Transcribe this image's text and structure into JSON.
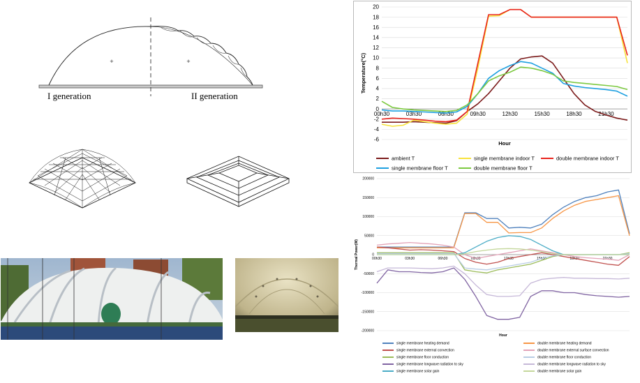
{
  "diagram": {
    "label_left": "I generation",
    "label_right": "II generation"
  },
  "chart_data": [
    {
      "type": "line",
      "xlabel": "Hour",
      "ylabel": "Temperature(°C)",
      "ylim": [
        -6,
        20
      ],
      "yticks": [
        -6,
        -4,
        -2,
        0,
        2,
        4,
        6,
        8,
        10,
        12,
        14,
        16,
        18,
        20
      ],
      "xtick_labels": [
        "00h30",
        "03h30",
        "06h30",
        "09h30",
        "12h30",
        "15h30",
        "18h30",
        "21h30"
      ],
      "xtick_hours": [
        0.5,
        3.5,
        6.5,
        9.5,
        12.5,
        15.5,
        18.5,
        21.5
      ],
      "grid": "horizontal",
      "legend_position": "bottom",
      "x": [
        0.5,
        1.5,
        2.5,
        3.5,
        4.5,
        5.5,
        6.5,
        7.5,
        8.5,
        9.5,
        10.5,
        11.5,
        12.5,
        13.5,
        14.5,
        15.5,
        16.5,
        17.5,
        18.5,
        19.5,
        20.5,
        21.5,
        22.5,
        23.5
      ],
      "series": [
        {
          "name": "ambient T",
          "color": "#7b1a1a",
          "values": [
            -2.6,
            -2.6,
            -2.6,
            -2.5,
            -2.6,
            -2.7,
            -2.8,
            -2.3,
            -0.5,
            1.0,
            3.0,
            5.5,
            8.0,
            9.8,
            10.2,
            10.4,
            9.0,
            6.0,
            3.0,
            0.8,
            -0.5,
            -1.2,
            -1.8,
            -2.2
          ]
        },
        {
          "name": "single membrane indoor T",
          "color": "#f7e23a",
          "values": [
            -3.0,
            -3.4,
            -3.2,
            -2.2,
            -2.5,
            -2.8,
            -3.0,
            -2.8,
            -1.0,
            8.0,
            18.2,
            18.3,
            19.5,
            19.5,
            18.0,
            18.0,
            18.0,
            18.0,
            18.0,
            18.0,
            18.0,
            18.0,
            18.0,
            9.0
          ]
        },
        {
          "name": "double membrane indoor T",
          "color": "#e8231c",
          "values": [
            -2.0,
            -1.8,
            -1.9,
            -2.0,
            -2.2,
            -2.4,
            -2.5,
            -2.2,
            -0.5,
            9.0,
            18.5,
            18.5,
            19.5,
            19.5,
            18.0,
            18.0,
            18.0,
            18.0,
            18.0,
            18.0,
            18.0,
            18.0,
            18.0,
            10.5
          ]
        },
        {
          "name": "single membrane floor T",
          "color": "#1ea0e0",
          "values": [
            -0.2,
            -0.4,
            -0.4,
            -0.5,
            -0.6,
            -0.7,
            -0.8,
            -0.6,
            0.5,
            3.0,
            6.0,
            7.5,
            8.5,
            9.3,
            9.0,
            8.0,
            7.0,
            5.0,
            4.5,
            4.2,
            4.0,
            3.8,
            3.5,
            2.5
          ]
        },
        {
          "name": "double membrane floor T",
          "color": "#7cc940",
          "values": [
            1.5,
            0.3,
            0.0,
            -0.2,
            -0.3,
            -0.4,
            -0.5,
            -0.3,
            0.8,
            3.0,
            5.5,
            6.5,
            7.2,
            8.2,
            8.0,
            7.5,
            6.8,
            5.5,
            5.2,
            5.0,
            4.8,
            4.6,
            4.4,
            3.8
          ]
        }
      ]
    },
    {
      "type": "line",
      "xlabel": "Hour",
      "ylabel": "Thermal Power(W)",
      "ylim": [
        -200000,
        200000
      ],
      "yticks": [
        -200000,
        -150000,
        -100000,
        -50000,
        0,
        50000,
        100000,
        150000,
        200000
      ],
      "xtick_labels": [
        "00h30",
        "03h30",
        "06h30",
        "09h30",
        "12h30",
        "15h30",
        "18h30",
        "21h30"
      ],
      "xtick_hours": [
        0.5,
        3.5,
        6.5,
        9.5,
        12.5,
        15.5,
        18.5,
        21.5
      ],
      "grid": "horizontal",
      "legend_position": "bottom",
      "x": [
        0.5,
        1.5,
        2.5,
        3.5,
        4.5,
        5.5,
        6.5,
        7.5,
        8.5,
        9.5,
        10.5,
        11.5,
        12.5,
        13.5,
        14.5,
        15.5,
        16.5,
        17.5,
        18.5,
        19.5,
        20.5,
        21.5,
        22.5,
        23.5
      ],
      "series": [
        {
          "name": "single membrane heating demand",
          "color": "#4f81bd",
          "values": [
            20000,
            20000,
            20000,
            20000,
            20000,
            20000,
            20000,
            20000,
            110000,
            110000,
            95000,
            95000,
            70000,
            72000,
            70000,
            80000,
            105000,
            125000,
            140000,
            150000,
            155000,
            165000,
            170000,
            55000
          ]
        },
        {
          "name": "double membrane heating demand",
          "color": "#f79646",
          "values": [
            18000,
            18000,
            18000,
            18000,
            18000,
            18000,
            18000,
            18000,
            108000,
            108000,
            85000,
            85000,
            57000,
            58000,
            58000,
            70000,
            95000,
            115000,
            130000,
            140000,
            145000,
            150000,
            155000,
            50000
          ]
        },
        {
          "name": "single membrane external convection",
          "color": "#c0504d",
          "values": [
            20000,
            18000,
            15000,
            12000,
            13000,
            12000,
            10000,
            8000,
            -10000,
            -20000,
            -25000,
            -20000,
            -10000,
            -5000,
            0,
            5000,
            0,
            -5000,
            -10000,
            -15000,
            -20000,
            -25000,
            -28000,
            -5000
          ]
        },
        {
          "name": "double membrane external surface convection",
          "color": "#e3a3b8",
          "values": [
            25000,
            28000,
            30000,
            32000,
            30000,
            28000,
            25000,
            20000,
            0,
            -10000,
            -5000,
            0,
            5000,
            10000,
            15000,
            10000,
            5000,
            0,
            -5000,
            -8000,
            -10000,
            -12000,
            -15000,
            0
          ]
        },
        {
          "name": "single membrane floor conduction",
          "color": "#9bbb59",
          "values": [
            5000,
            5000,
            5000,
            5000,
            5000,
            5000,
            5000,
            5000,
            -40000,
            -45000,
            -48000,
            -40000,
            -35000,
            -30000,
            -25000,
            -15000,
            -5000,
            0,
            0,
            0,
            0,
            0,
            0,
            5000
          ]
        },
        {
          "name": "double membrane floor conduction",
          "color": "#b8cce4",
          "values": [
            3000,
            3000,
            3000,
            3000,
            3000,
            3000,
            3000,
            3000,
            -35000,
            -38000,
            -40000,
            -35000,
            -30000,
            -25000,
            -20000,
            -10000,
            -3000,
            0,
            0,
            0,
            0,
            0,
            0,
            3000
          ]
        },
        {
          "name": "single membrane longwave radiation to sky",
          "color": "#8064a2",
          "values": [
            -75000,
            -40000,
            -45000,
            -45000,
            -47000,
            -48000,
            -45000,
            -35000,
            -65000,
            -110000,
            -160000,
            -170000,
            -170000,
            -165000,
            -110000,
            -95000,
            -95000,
            -100000,
            -100000,
            -105000,
            -108000,
            -110000,
            -112000,
            -110000
          ]
        },
        {
          "name": "double membrane longwave radiation to sky",
          "color": "#c6b8d8",
          "values": [
            -45000,
            -35000,
            -35000,
            -35000,
            -36000,
            -37000,
            -35000,
            -30000,
            -50000,
            -80000,
            -105000,
            -110000,
            -110000,
            -108000,
            -75000,
            -65000,
            -62000,
            -60000,
            -62000,
            -62000,
            -63000,
            -63000,
            -64000,
            -62000
          ]
        },
        {
          "name": "single membrane solar gain",
          "color": "#4bacc6",
          "values": [
            0,
            0,
            0,
            0,
            0,
            0,
            0,
            0,
            5000,
            20000,
            35000,
            45000,
            50000,
            48000,
            40000,
            25000,
            10000,
            0,
            0,
            0,
            0,
            0,
            0,
            0
          ]
        },
        {
          "name": "double membrane solar gain",
          "color": "#c4d79b",
          "values": [
            0,
            0,
            0,
            0,
            0,
            0,
            0,
            0,
            2000,
            8000,
            12000,
            15000,
            16000,
            15000,
            12000,
            8000,
            3000,
            0,
            0,
            0,
            0,
            0,
            0,
            0
          ]
        }
      ]
    }
  ]
}
